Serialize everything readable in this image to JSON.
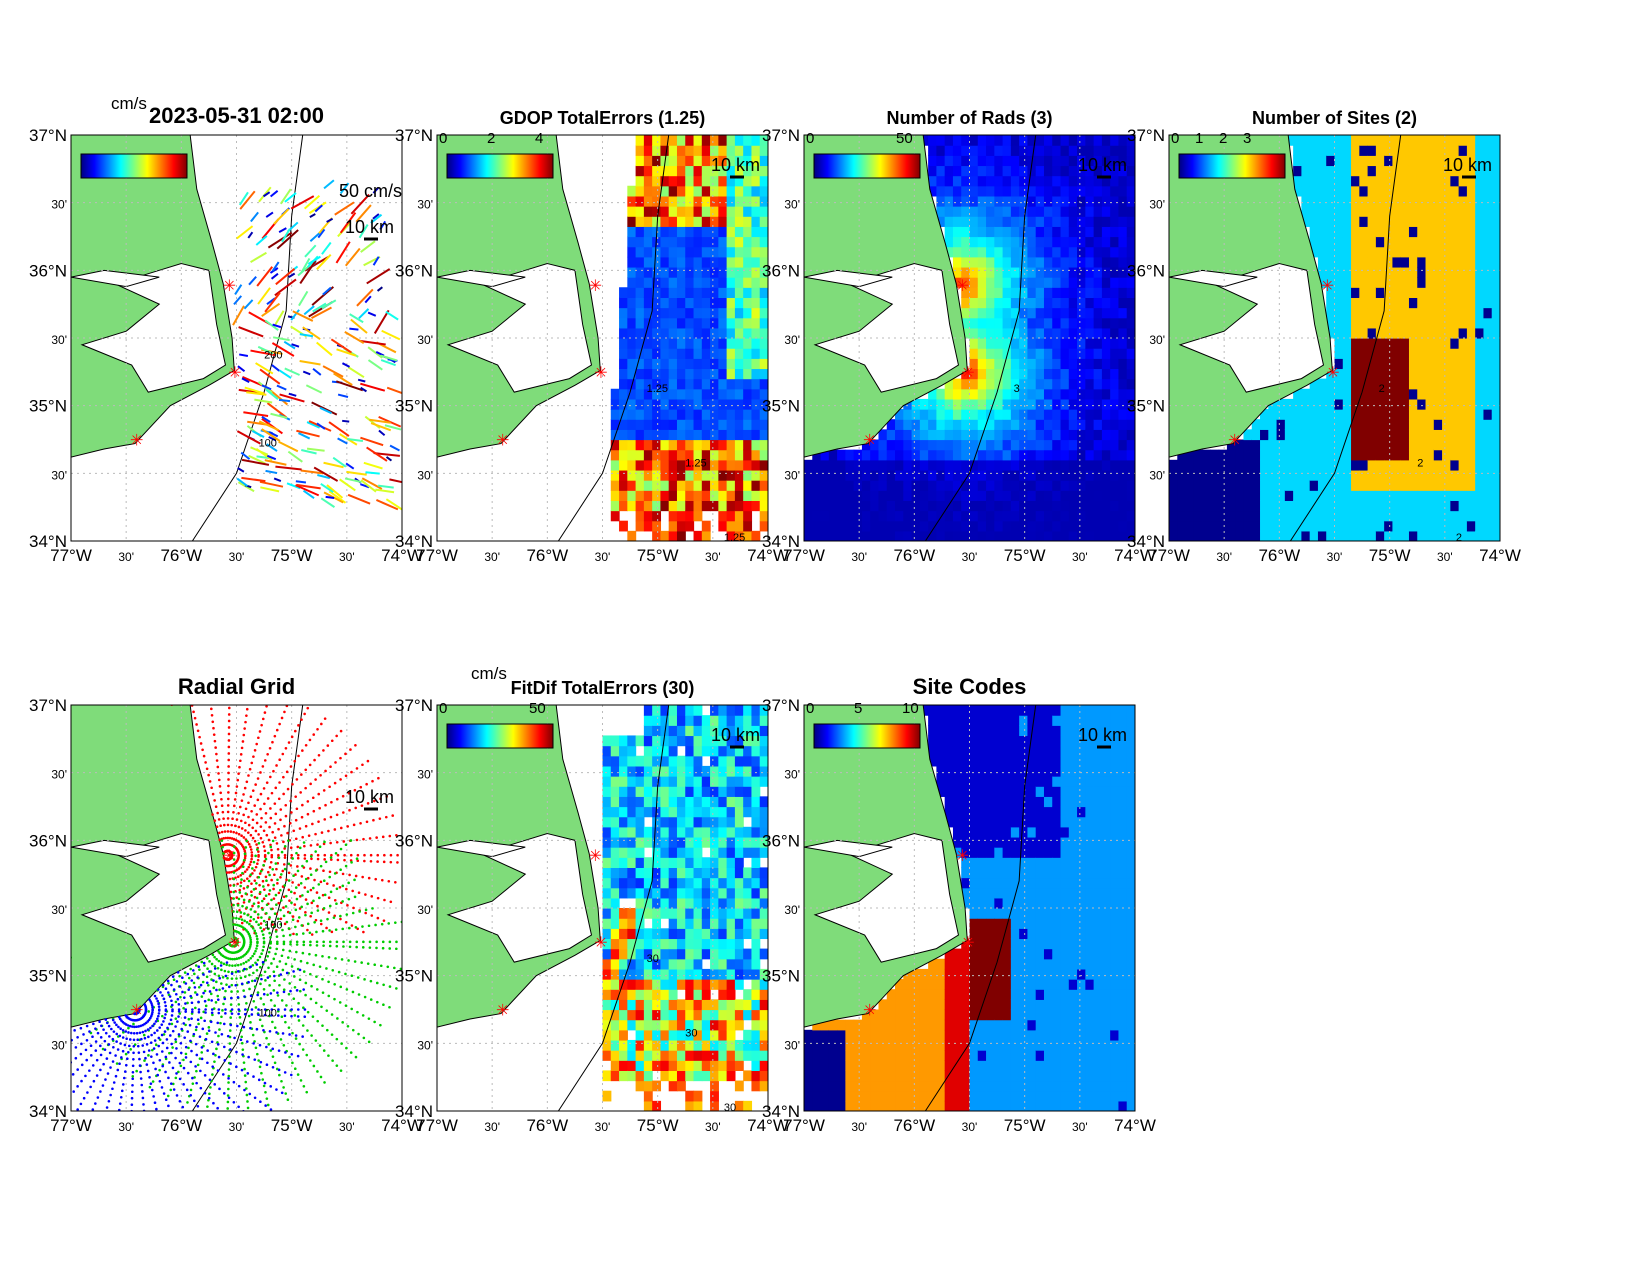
{
  "colors": {
    "land": "#7fdc7a",
    "water": "#ffffff",
    "site": "#ff0000"
  },
  "ticks": {
    "lat": [
      "37°N",
      "30'",
      "36°N",
      "30'",
      "35°N",
      "30'",
      "34°N"
    ],
    "lon": [
      "77°W",
      "30'",
      "76°W",
      "30'",
      "75°W",
      "30'",
      "74°W"
    ]
  },
  "panels": [
    {
      "id": "vectors",
      "title": "2023-05-31 02:00",
      "cb_unit": "cm/s",
      "cb_ticks": [],
      "scale_km": "10 km",
      "scale_vec": "50 cm/s",
      "contour_labels": [
        "100",
        "200"
      ],
      "kind": "vectors"
    },
    {
      "id": "gdop",
      "title": "GDOP TotalErrors (1.25)",
      "cb_ticks": [
        "0",
        "2",
        "4"
      ],
      "scale_km": "10 km",
      "contour_labels": [
        "1.25",
        "1.25",
        "1.25",
        "1.25"
      ],
      "kind": "gdop"
    },
    {
      "id": "nrads",
      "title": "Number of Rads (3)",
      "cb_ticks": [
        "0",
        "50"
      ],
      "scale_km": "10 km",
      "contour_labels": [
        "3"
      ],
      "kind": "nrads"
    },
    {
      "id": "nsites",
      "title": "Number of Sites (2)",
      "cb_ticks": [
        "0",
        "1",
        "2",
        "3"
      ],
      "scale_km": "10 km",
      "contour_labels": [
        "2",
        "2",
        "2",
        "2"
      ],
      "kind": "nsites"
    },
    {
      "id": "radgrid",
      "title": "Radial Grid",
      "scale_km": "10 km",
      "contour_labels": [
        "100",
        "100"
      ],
      "kind": "radgrid"
    },
    {
      "id": "fitdif",
      "title": "FitDif TotalErrors (30)",
      "cb_unit": "cm/s",
      "cb_ticks": [
        "0",
        "50"
      ],
      "scale_km": "10 km",
      "contour_labels": [
        "30",
        "30",
        "30",
        "30"
      ],
      "kind": "fitdif"
    },
    {
      "id": "sitecodes",
      "title": "Site Codes",
      "cb_ticks": [
        "0",
        "5",
        "10"
      ],
      "scale_km": "10 km",
      "contour_labels": [],
      "kind": "sitecodes"
    }
  ]
}
